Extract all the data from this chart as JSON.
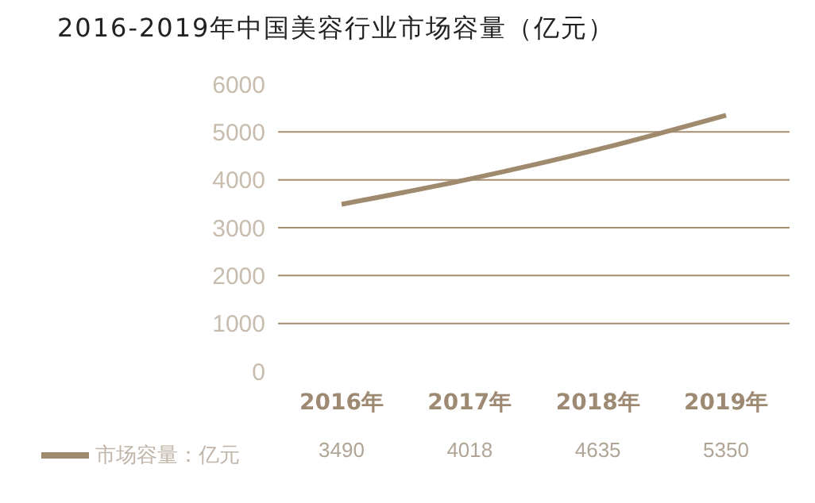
{
  "chart_data": {
    "type": "line",
    "title": "2016-2019年中国美容行业市场容量（亿元）",
    "categories": [
      "2016年",
      "2017年",
      "2018年",
      "2019年"
    ],
    "series": [
      {
        "name": "市场容量：亿元",
        "color": "#a08a6e",
        "values": [
          3490,
          4018,
          4635,
          5350
        ]
      }
    ],
    "ylim": [
      0,
      6000
    ],
    "yticks": [
      0,
      1000,
      2000,
      3000,
      4000,
      5000,
      6000
    ],
    "grid": "y",
    "legend": "bottom left",
    "data_labels": true,
    "marker": "none",
    "line_style": "solid"
  }
}
